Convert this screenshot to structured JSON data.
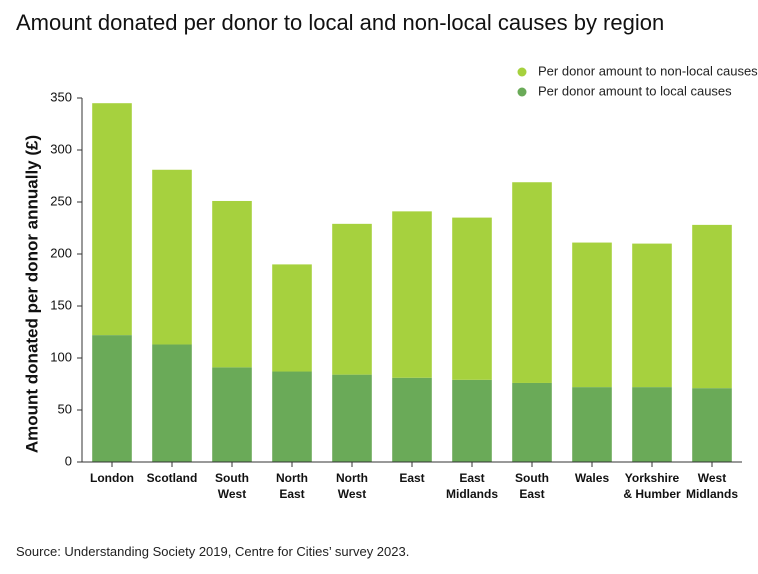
{
  "chart_data": {
    "type": "bar",
    "stacked": true,
    "title": "Amount donated per donor to local and non-local causes by region",
    "ylabel": "Amount donated per donor annually (£)",
    "xlabel": "",
    "ylim": [
      0,
      350
    ],
    "yticks": [
      0,
      50,
      100,
      150,
      200,
      250,
      300,
      350
    ],
    "grid": false,
    "legend_position": "top-right",
    "categories": [
      [
        "London"
      ],
      [
        "Scotland"
      ],
      [
        "South",
        "West"
      ],
      [
        "North",
        "East"
      ],
      [
        "North",
        "West"
      ],
      [
        "East"
      ],
      [
        "East",
        "Midlands"
      ],
      [
        "South",
        "East"
      ],
      [
        "Wales"
      ],
      [
        "Yorkshire",
        "& Humber"
      ],
      [
        "West",
        "Midlands"
      ]
    ],
    "series": [
      {
        "name": "Per donor amount to local causes",
        "color": "#6aaa58",
        "values": [
          122,
          113,
          91,
          87,
          84,
          81,
          79,
          76,
          72,
          72,
          71
        ]
      },
      {
        "name": "Per donor amount to non-local causes",
        "color": "#a6d13e",
        "values": [
          223,
          168,
          160,
          103,
          145,
          160,
          156,
          193,
          139,
          138,
          157
        ]
      }
    ],
    "legend_order": [
      1,
      0
    ],
    "source": "Source: Understanding Society 2019, Centre for Cities’ survey 2023."
  }
}
